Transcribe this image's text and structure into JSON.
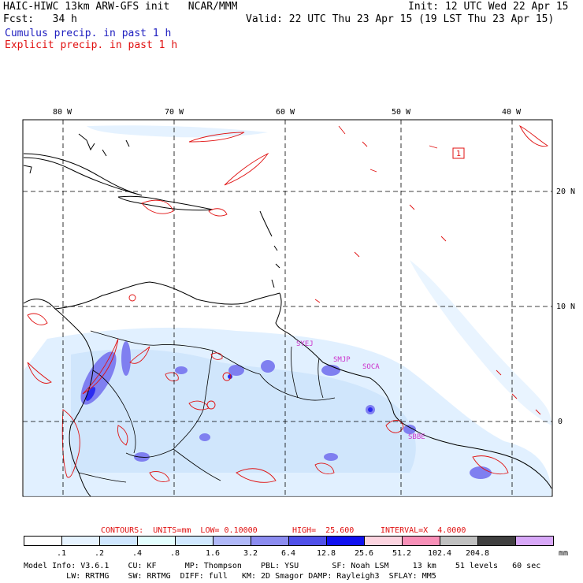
{
  "header": {
    "title": "HAIC-HIWC 13km ARW-GFS init   NCAR/MMM",
    "init": "Init: 12 UTC Wed 22 Apr 15",
    "fcst_label": "Fcst:   34 h",
    "valid": "Valid: 22 UTC Thu 23 Apr 15 (19 LST Thu 23 Apr 15)",
    "cumulus_label": "Cumulus precip. in past 1 h",
    "explicit_label": "Explicit precip. in past 1 h"
  },
  "map": {
    "lon_labels": [
      "80 W",
      "70 W",
      "60 W",
      "50 W",
      "40 W"
    ],
    "lat_labels": [
      "20 N",
      "10 N",
      "0"
    ],
    "station_labels": [
      "SYEJ",
      "SMJP",
      "SOCA",
      "SBBE"
    ],
    "marker_label": "1"
  },
  "contour_info": {
    "contours": "CONTOURS:  UNITS=mm  LOW= 0.10000",
    "high": "HIGH=  25.600",
    "interval": "INTERVAL=X  4.0000"
  },
  "colorbar": {
    "units": "mm",
    "colors": [
      "#ffffff",
      "#e6f3ff",
      "#cfe7ff",
      "#e4ffff",
      "#d0e8ff",
      "#b0b8f8",
      "#8c8cf0",
      "#5050e8",
      "#1010f0",
      "#fcd4e0",
      "#f890b8",
      "#c0c0c0",
      "#404040",
      "#d8a8f8"
    ],
    "labels": [
      ".1",
      ".2",
      ".4",
      ".8",
      "1.6",
      "3.2",
      "6.4",
      "12.8",
      "25.6",
      "51.2",
      "102.4",
      "204.8"
    ]
  },
  "model_info": {
    "line1": "Model Info: V3.6.1    CU: KF      MP: Thompson    PBL: YSU       SF: Noah LSM     13 km    51 levels   60 sec",
    "line2": "         LW: RRTMG    SW: RRTMG  DIFF: full   KM: 2D Smagor DAMP: Rayleigh3  SFLAY: MM5"
  }
}
